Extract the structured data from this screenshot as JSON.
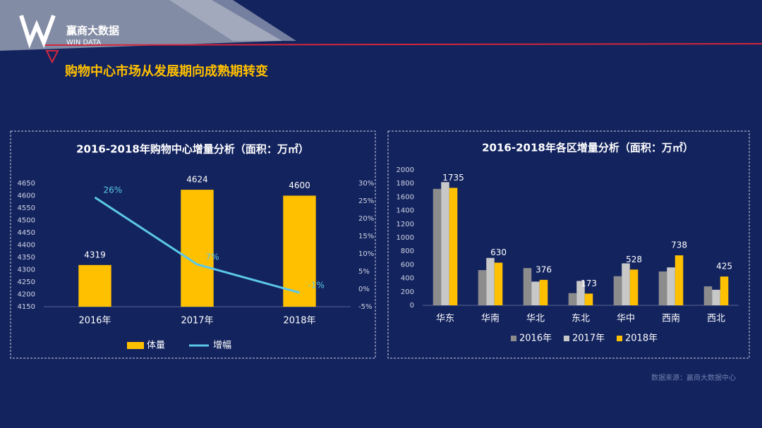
{
  "header": {
    "logo": "赢商大数据",
    "logo_sub": "WIN DATA",
    "title": "购物中心市场从发展期向成熟期转变"
  },
  "footer": {
    "source": "数据来源：赢商大数据中心"
  },
  "chart_data": [
    {
      "type": "combo",
      "title": "2016-2018年购物中心增量分析（面积：万㎡）",
      "categories": [
        "2016年",
        "2017年",
        "2018年"
      ],
      "series": [
        {
          "name": "体量",
          "color": "#ffc000",
          "values": [
            4319,
            4624,
            4600
          ],
          "data_labels": true
        },
        {
          "name": "增幅",
          "color": "#5bc8e8",
          "axis": "y2",
          "values": [
            26,
            7,
            -1
          ],
          "value_labels": [
            "26%",
            "7%",
            "-1%"
          ],
          "data_labels": true
        }
      ],
      "ylim": [
        4150,
        4650
      ],
      "yticks": [
        4150,
        4200,
        4250,
        4300,
        4350,
        4400,
        4450,
        4500,
        4550,
        4600,
        4650
      ],
      "y2lim": [
        -5,
        30
      ],
      "y2ticks": [
        {
          "value": -5,
          "label": "-5%"
        },
        {
          "value": 0,
          "label": "0%"
        },
        {
          "value": 5,
          "label": "5%"
        },
        {
          "value": 10,
          "label": "10%"
        },
        {
          "value": 15,
          "label": "15%"
        },
        {
          "value": 20,
          "label": "20%"
        },
        {
          "value": 25,
          "label": "25%"
        },
        {
          "value": 30,
          "label": "30%"
        }
      ],
      "legend": "bottom",
      "grid": false
    },
    {
      "type": "bar",
      "title": "2016-2018年各区增量分析（面积：万㎡）",
      "categories": [
        "华东",
        "华南",
        "华北",
        "东北",
        "华中",
        "西南",
        "西北"
      ],
      "series": [
        {
          "name": "2016年",
          "color": "#8c8c8c",
          "values": [
            1720,
            520,
            550,
            180,
            430,
            500,
            280
          ],
          "data_labels": false
        },
        {
          "name": "2017年",
          "color": "#c8c8c8",
          "values": [
            1820,
            700,
            350,
            360,
            620,
            560,
            230
          ],
          "data_labels": false
        },
        {
          "name": "2018年",
          "color": "#ffc000",
          "values": [
            1735,
            630,
            376,
            173,
            528,
            738,
            425
          ],
          "data_labels": true
        }
      ],
      "ylim": [
        0,
        2000
      ],
      "yticks": [
        0,
        200,
        400,
        600,
        800,
        1000,
        1200,
        1400,
        1600,
        1800,
        2000
      ],
      "legend": "bottom",
      "grid": false
    }
  ]
}
